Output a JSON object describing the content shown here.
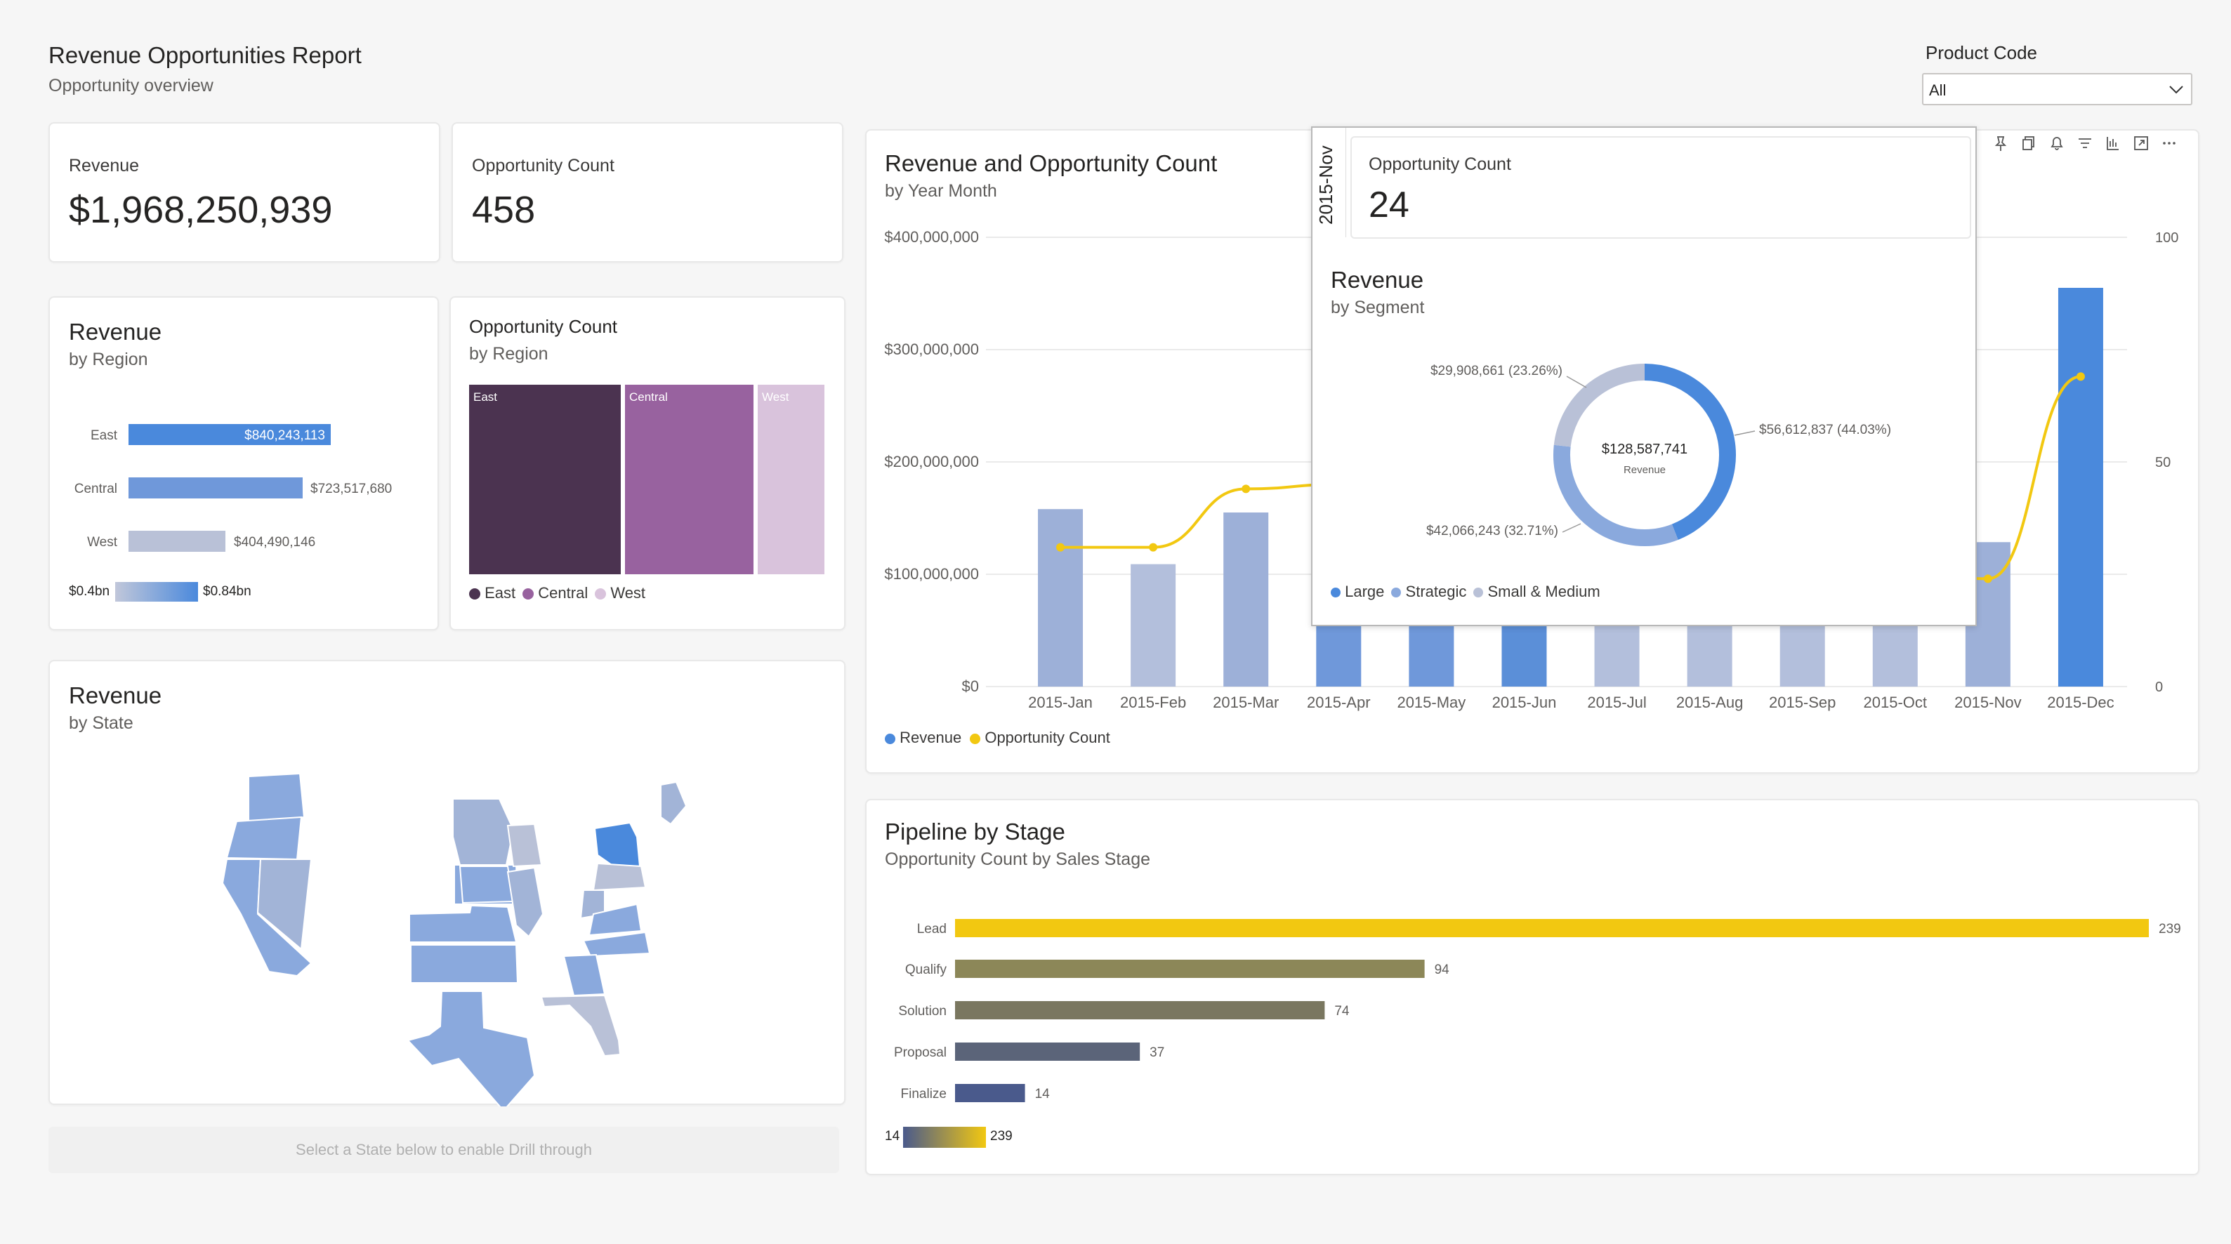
{
  "header": {
    "title": "Revenue Opportunities Report",
    "subtitle": "Opportunity overview"
  },
  "filter": {
    "label": "Product Code",
    "value": "All"
  },
  "kpi": {
    "revenue": {
      "label": "Revenue",
      "value": "$1,968,250,939"
    },
    "opportunity_count": {
      "label": "Opportunity Count",
      "value": "458"
    }
  },
  "revenue_by_region": {
    "title": "Revenue",
    "subtitle": "by Region",
    "bars": [
      {
        "label": "East",
        "value_label": "$840,243,113",
        "value": 840243113
      },
      {
        "label": "Central",
        "value_label": "$723,517,680",
        "value": 723517680
      },
      {
        "label": "West",
        "value_label": "$404,490,146",
        "value": 404490146
      }
    ],
    "gradient_min": "$0.4bn",
    "gradient_max": "$0.84bn"
  },
  "opp_by_region": {
    "title": "Opportunity Count",
    "subtitle": "by Region",
    "tiles": [
      {
        "label": "East",
        "color": "#4b3350"
      },
      {
        "label": "Central",
        "color": "#98629f"
      },
      {
        "label": "West",
        "color": "#d9c3dc"
      }
    ],
    "legend": [
      "East",
      "Central",
      "West"
    ]
  },
  "revenue_by_state": {
    "title": "Revenue",
    "subtitle": "by State"
  },
  "drill_note": "Select a State below to enable Drill through",
  "main_chart": {
    "title": "Revenue and Opportunity Count",
    "subtitle": "by Year Month",
    "legend": [
      "Revenue",
      "Opportunity Count"
    ]
  },
  "chart_data": [
    {
      "type": "bar",
      "title": "Revenue and Opportunity Count",
      "subtitle": "by Year Month",
      "categories": [
        "2015-Jan",
        "2015-Feb",
        "2015-Mar",
        "2015-Apr",
        "2015-May",
        "2015-Jun",
        "2015-Jul",
        "2015-Aug",
        "2015-Sep",
        "2015-Oct",
        "2015-Nov",
        "2015-Dec"
      ],
      "y_left_ticks": [
        "$0",
        "$100,000,000",
        "$200,000,000",
        "$300,000,000",
        "$400,000,000"
      ],
      "y_right_ticks": [
        "0",
        "50",
        "100"
      ],
      "ylim": [
        0,
        400000000
      ],
      "y2lim": [
        0,
        100
      ],
      "series": [
        {
          "name": "Revenue",
          "type": "bar",
          "values": [
            158000000,
            109000000,
            155000000,
            130000000,
            120000000,
            128000000,
            125000000,
            122000000,
            120000000,
            118000000,
            128600000,
            355000000
          ],
          "colors": [
            "#9db0d8",
            "#b3bfdc",
            "#9db0d8",
            "#6f98da",
            "#6f98da",
            "#5b8fd8",
            "#b3bfdc",
            "#b3bfdc",
            "#b3bfdc",
            "#b3bfdc",
            "#9db0d8",
            "#4a89dc"
          ]
        },
        {
          "name": "Opportunity Count",
          "type": "line",
          "values": [
            31,
            31,
            44,
            45,
            40,
            38,
            36,
            34,
            30,
            26,
            24,
            69
          ],
          "color": "#f2c811"
        }
      ]
    },
    {
      "type": "bar",
      "title": "Pipeline by Stage",
      "subtitle": "Opportunity Count by Sales Stage",
      "categories": [
        "Lead",
        "Qualify",
        "Solution",
        "Proposal",
        "Finalize"
      ],
      "values": [
        239,
        94,
        74,
        37,
        14
      ],
      "colors": [
        "#f2c811",
        "#8c8758",
        "#7a7760",
        "#5b6479",
        "#4a5a8c"
      ],
      "gradient_min": "14",
      "gradient_max": "239"
    },
    {
      "type": "pie",
      "title": "Revenue",
      "subtitle": "by Segment",
      "center_value": "$128,587,741",
      "center_label": "Revenue",
      "slices": [
        {
          "name": "Large",
          "value": 56612837,
          "label": "$56,612,837 (44.03%)",
          "color": "#4a89dc"
        },
        {
          "name": "Strategic",
          "value": 42066243,
          "label": "$42,066,243 (32.71%)",
          "color": "#8aa9dd"
        },
        {
          "name": "Small & Medium",
          "value": 29908661,
          "label": "$29,908,661 (23.26%)",
          "color": "#b9c1d7"
        }
      ]
    }
  ],
  "pipeline": {
    "title": "Pipeline by Stage",
    "subtitle": "Opportunity Count by Sales Stage"
  },
  "tooltip": {
    "month": "2015-Nov",
    "opp_label": "Opportunity Count",
    "opp_value": "24",
    "seg_title": "Revenue",
    "seg_subtitle": "by Segment",
    "legend": [
      "Large",
      "Strategic",
      "Small & Medium"
    ]
  },
  "colors": {
    "accent": "#4a89dc",
    "line": "#f2c811"
  }
}
